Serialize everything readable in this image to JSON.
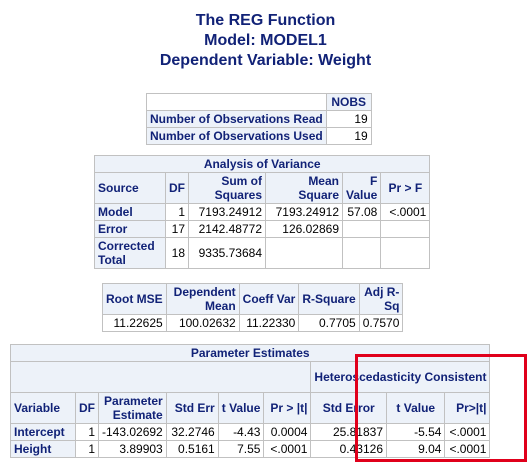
{
  "titles": {
    "line1": "The REG Function",
    "line2": "Model: MODEL1",
    "line3": "Dependent Variable: Weight"
  },
  "nobs": {
    "header": "NOBS",
    "rows": [
      {
        "label": "Number of Observations Read",
        "value": "19"
      },
      {
        "label": "Number of Observations Used",
        "value": "19"
      }
    ]
  },
  "anova": {
    "caption": "Analysis of Variance",
    "headers": {
      "source": "Source",
      "df": "DF",
      "ss": "Sum of Squares",
      "ms": "Mean Square",
      "f": "F Value",
      "p": "Pr > F"
    },
    "rows": [
      {
        "source": "Model",
        "df": "1",
        "ss": "7193.24912",
        "ms": "7193.24912",
        "f": "57.08",
        "p": "<.0001"
      },
      {
        "source": "Error",
        "df": "17",
        "ss": "2142.48772",
        "ms": "126.02869",
        "f": "",
        "p": ""
      },
      {
        "source": "Corrected Total",
        "df": "18",
        "ss": "9335.73684",
        "ms": "",
        "f": "",
        "p": ""
      }
    ]
  },
  "fit": {
    "headers": {
      "rmse": "Root MSE",
      "depmean": "Dependent Mean",
      "cv": "Coeff Var",
      "rsq": "R-Square",
      "adjrsq": "Adj R-Sq"
    },
    "values": {
      "rmse": "11.22625",
      "depmean": "100.02632",
      "cv": "11.22330",
      "rsq": "0.7705",
      "adjrsq": "0.7570"
    }
  },
  "pe": {
    "caption": "Parameter Estimates",
    "hc_caption": "Heteroscedasticity Consistent",
    "headers": {
      "variable": "Variable",
      "df": "DF",
      "estimate": "Parameter Estimate",
      "stderr": "Std Err",
      "t": "t Value",
      "p": "Pr > |t|",
      "hc_stderr": "Std Error",
      "hc_t": "t Value",
      "hc_p": "Pr>|t|"
    },
    "rows": [
      {
        "variable": "Intercept",
        "df": "1",
        "estimate": "-143.02692",
        "stderr": "32.2746",
        "t": "-4.43",
        "p": "0.0004",
        "hc_stderr": "25.81837",
        "hc_t": "-5.54",
        "hc_p": "<.0001"
      },
      {
        "variable": "Height",
        "df": "1",
        "estimate": "3.89903",
        "stderr": "0.5161",
        "t": "7.55",
        "p": "<.0001",
        "hc_stderr": "0.43126",
        "hc_t": "9.04",
        "hc_p": "<.0001"
      }
    ]
  },
  "highlight_color": "#e0001b"
}
